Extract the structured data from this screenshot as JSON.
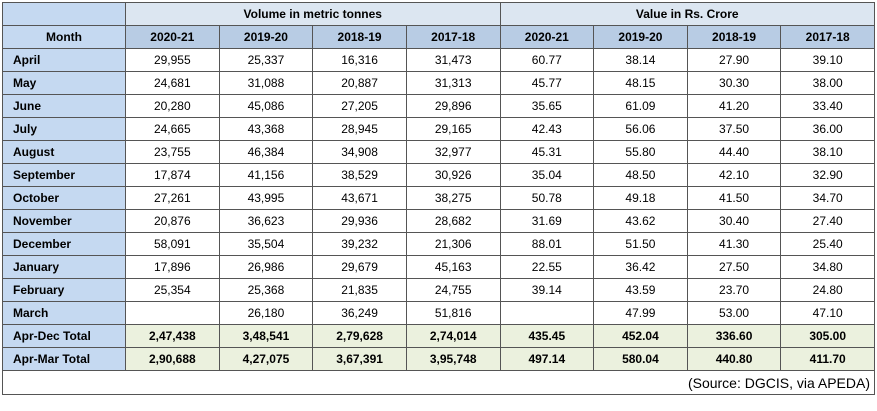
{
  "table": {
    "groups": [
      "Volume in metric tonnes",
      "Value in Rs. Crore"
    ],
    "month_header": "Month",
    "columns": [
      "2020-21",
      "2019-20",
      "2018-19",
      "2017-18",
      "2020-21",
      "2019-20",
      "2018-19",
      "2017-18"
    ],
    "rows": [
      {
        "month": "April",
        "cells": [
          "29,955",
          "25,337",
          "16,316",
          "31,473",
          "60.77",
          "38.14",
          "27.90",
          "39.10"
        ]
      },
      {
        "month": "May",
        "cells": [
          "24,681",
          "31,088",
          "20,887",
          "31,313",
          "45.77",
          "48.15",
          "30.30",
          "38.00"
        ]
      },
      {
        "month": "June",
        "cells": [
          "20,280",
          "45,086",
          "27,205",
          "29,896",
          "35.65",
          "61.09",
          "41.20",
          "33.40"
        ]
      },
      {
        "month": "July",
        "cells": [
          "24,665",
          "43,368",
          "28,945",
          "29,165",
          "42.43",
          "56.06",
          "37.50",
          "36.00"
        ]
      },
      {
        "month": "August",
        "cells": [
          "23,755",
          "46,384",
          "34,908",
          "32,977",
          "45.31",
          "55.80",
          "44.40",
          "38.10"
        ]
      },
      {
        "month": "September",
        "cells": [
          "17,874",
          "41,156",
          "38,529",
          "30,926",
          "35.04",
          "48.50",
          "42.10",
          "32.90"
        ]
      },
      {
        "month": "October",
        "cells": [
          "27,261",
          "43,995",
          "43,671",
          "38,275",
          "50.78",
          "49.18",
          "41.50",
          "34.70"
        ]
      },
      {
        "month": "November",
        "cells": [
          "20,876",
          "36,623",
          "29,936",
          "28,682",
          "31.69",
          "43.62",
          "30.40",
          "27.40"
        ]
      },
      {
        "month": "December",
        "cells": [
          "58,091",
          "35,504",
          "39,232",
          "21,306",
          "88.01",
          "51.50",
          "41.30",
          "25.40"
        ]
      },
      {
        "month": "January",
        "cells": [
          "17,896",
          "26,986",
          "29,679",
          "45,163",
          "22.55",
          "36.42",
          "27.50",
          "34.80"
        ]
      },
      {
        "month": "February",
        "cells": [
          "25,354",
          "25,368",
          "21,835",
          "24,755",
          "39.14",
          "43.59",
          "23.70",
          "24.80"
        ]
      },
      {
        "month": "March",
        "cells": [
          null,
          "26,180",
          "36,249",
          "51,816",
          null,
          "47.99",
          "53.00",
          "47.10"
        ]
      }
    ],
    "totals": [
      {
        "month": "Apr-Dec Total",
        "cells": [
          "2,47,438",
          "3,48,541",
          "2,79,628",
          "2,74,014",
          "435.45",
          "452.04",
          "336.60",
          "305.00"
        ]
      },
      {
        "month": "Apr-Mar Total",
        "cells": [
          "2,90,688",
          "4,27,075",
          "3,67,391",
          "3,95,748",
          "497.14",
          "580.04",
          "440.80",
          "411.70"
        ]
      }
    ],
    "source": "(Source: DGCIS, via APEDA)"
  }
}
